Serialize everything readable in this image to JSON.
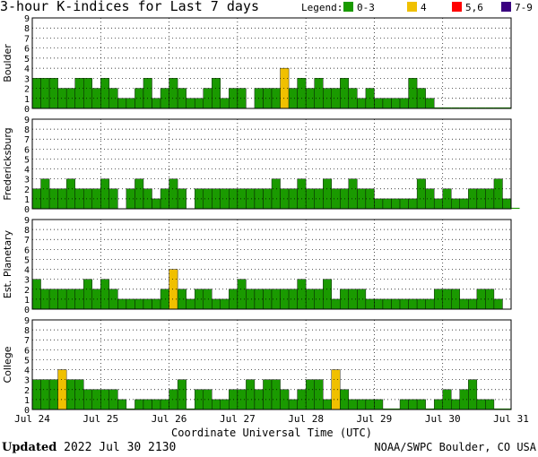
{
  "page": {
    "title": "3-hour K-indices for Last 7 days",
    "legend_label": "Legend:",
    "legend": [
      {
        "label": "0-3",
        "color": "#1a9a00"
      },
      {
        "label": "4",
        "color": "#f0c000"
      },
      {
        "label": "5,6",
        "color": "#ff0000"
      },
      {
        "label": "7-9",
        "color": "#3a0080"
      }
    ],
    "updated_label": "Updated",
    "updated_value": "2022 Jul 30 2130",
    "source": "NOAA/SWPC Boulder, CO USA"
  },
  "chart_data": [
    {
      "type": "bar",
      "ylabel": "Boulder",
      "ylim": [
        0,
        9
      ],
      "yticks": [
        "0",
        "1",
        "2",
        "3",
        "4",
        "5",
        "6",
        "7",
        "8",
        "9"
      ],
      "xticks": [
        "Jul 24",
        "Jul 25",
        "Jul 26",
        "Jul 27",
        "Jul 28",
        "Jul 29",
        "Jul 30",
        "Jul 31"
      ],
      "xlabel": "",
      "grid": true,
      "values": [
        3,
        3,
        3,
        2,
        2,
        3,
        3,
        2,
        3,
        2,
        1,
        1,
        2,
        3,
        1,
        2,
        3,
        2,
        1,
        1,
        2,
        3,
        1,
        2,
        2,
        0,
        2,
        2,
        2,
        4,
        2,
        3,
        2,
        3,
        2,
        2,
        3,
        2,
        1,
        2,
        1,
        1,
        1,
        1,
        3,
        2,
        1,
        0.1,
        0.1,
        0.1,
        0.1,
        0.1,
        0.1,
        0.1,
        0.1,
        0.1
      ]
    },
    {
      "type": "bar",
      "ylabel": "Fredericksburg",
      "ylim": [
        0,
        9
      ],
      "yticks": [
        "0",
        "1",
        "2",
        "3",
        "4",
        "5",
        "6",
        "7",
        "8",
        "9"
      ],
      "xticks": [
        "Jul 24",
        "Jul 25",
        "Jul 26",
        "Jul 27",
        "Jul 28",
        "Jul 29",
        "Jul 30",
        "Jul 31"
      ],
      "xlabel": "",
      "grid": true,
      "values": [
        2,
        3,
        2,
        2,
        3,
        2,
        2,
        2,
        3,
        2,
        0,
        2,
        3,
        2,
        1,
        2,
        3,
        2,
        0,
        2,
        2,
        2,
        2,
        2,
        2,
        2,
        2,
        2,
        3,
        2,
        2,
        3,
        2,
        2,
        3,
        2,
        2,
        3,
        2,
        2,
        1,
        1,
        1,
        1,
        1,
        3,
        2,
        1,
        2,
        1,
        1,
        2,
        2,
        2,
        3,
        1,
        0.1
      ]
    },
    {
      "type": "bar",
      "ylabel": "Est. Planetary",
      "ylim": [
        0,
        9
      ],
      "yticks": [
        "0",
        "1",
        "2",
        "3",
        "4",
        "5",
        "6",
        "7",
        "8",
        "9"
      ],
      "xticks": [
        "Jul 24",
        "Jul 25",
        "Jul 26",
        "Jul 27",
        "Jul 28",
        "Jul 29",
        "Jul 30",
        "Jul 31"
      ],
      "xlabel": "",
      "grid": true,
      "values": [
        3,
        2,
        2,
        2,
        2,
        2,
        3,
        2,
        3,
        2,
        1,
        1,
        1,
        1,
        1,
        2,
        4,
        2,
        1,
        2,
        2,
        1,
        1,
        2,
        3,
        2,
        2,
        2,
        2,
        2,
        2,
        3,
        2,
        2,
        3,
        1,
        2,
        2,
        2,
        1,
        1,
        1,
        1,
        1,
        1,
        1,
        1,
        2,
        2,
        2,
        1,
        1,
        2,
        2,
        1
      ]
    },
    {
      "type": "bar",
      "ylabel": "College",
      "ylim": [
        0,
        9
      ],
      "yticks": [
        "0",
        "1",
        "2",
        "3",
        "4",
        "5",
        "6",
        "7",
        "8",
        "9"
      ],
      "xticks": [
        "Jul 24",
        "Jul 25",
        "Jul 26",
        "Jul 27",
        "Jul 28",
        "Jul 29",
        "Jul 30",
        "Jul 31"
      ],
      "xlabel": "Coordinate Universal Time (UTC)",
      "grid": true,
      "values": [
        3,
        3,
        3,
        4,
        3,
        3,
        2,
        2,
        2,
        2,
        1,
        0.1,
        1,
        1,
        1,
        1,
        2,
        3,
        0.1,
        2,
        2,
        1,
        1,
        2,
        2,
        3,
        2,
        3,
        3,
        2,
        1,
        2,
        3,
        3,
        1,
        4,
        2,
        1,
        1,
        1,
        1,
        0.1,
        0.1,
        1,
        1,
        1,
        0.1,
        1,
        2,
        1,
        2,
        3,
        1,
        1,
        0.1,
        0.1
      ]
    }
  ]
}
